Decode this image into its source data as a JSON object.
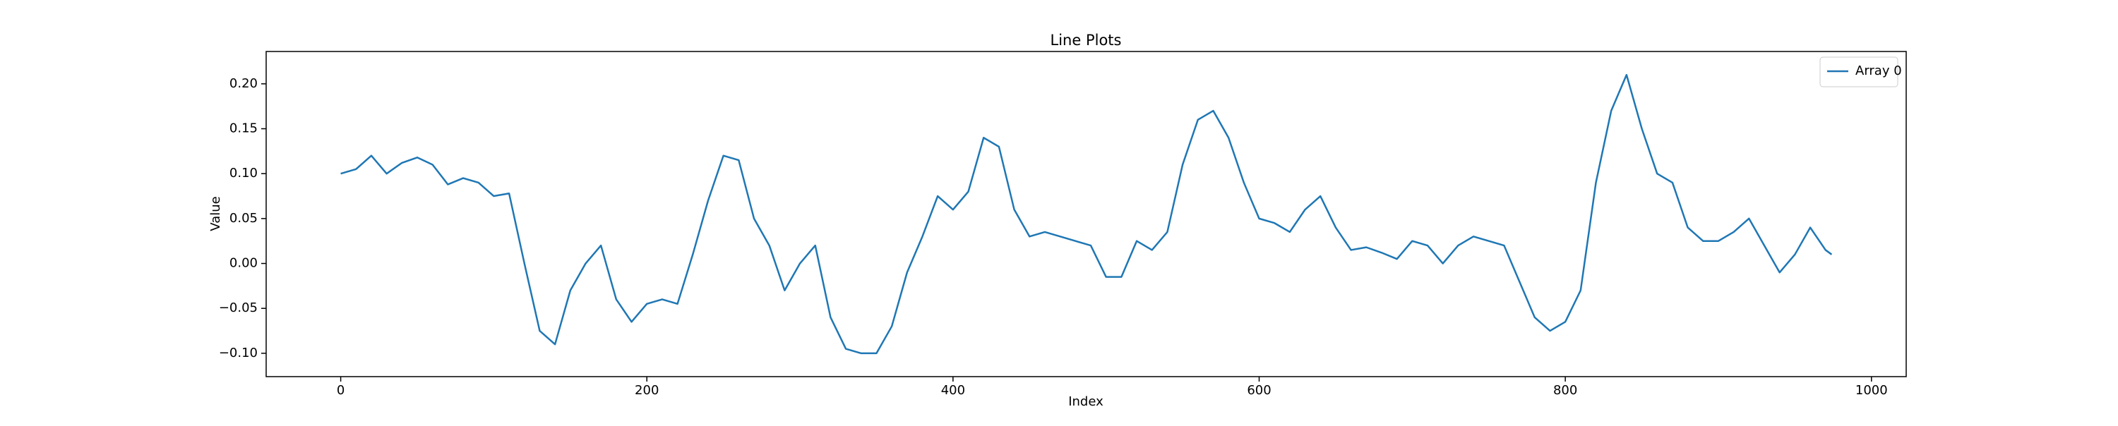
{
  "chart_data": {
    "type": "line",
    "title": "Line Plots",
    "x_label": "Index",
    "y_label": "Value",
    "x": [
      0,
      10,
      20,
      30,
      40,
      50,
      60,
      70,
      80,
      90,
      100,
      110,
      120,
      130,
      140,
      150,
      160,
      170,
      180,
      190,
      200,
      210,
      220,
      230,
      240,
      250,
      260,
      270,
      280,
      290,
      300,
      310,
      320,
      330,
      340,
      350,
      360,
      370,
      380,
      390,
      400,
      410,
      420,
      430,
      440,
      450,
      460,
      470,
      480,
      490,
      500,
      510,
      520,
      530,
      540,
      550,
      560,
      570,
      580,
      590,
      600,
      610,
      620,
      630,
      640,
      650,
      660,
      670,
      680,
      690,
      700,
      710,
      720,
      730,
      740,
      750,
      760,
      770,
      780,
      790,
      800,
      810,
      820,
      830,
      840,
      850,
      860,
      870,
      880,
      890,
      900,
      910,
      920,
      930,
      940,
      950,
      960,
      970,
      974
    ],
    "series": [
      {
        "name": "Array 0",
        "color": "#1f77b4",
        "values": [
          0.1,
          0.105,
          0.12,
          0.1,
          0.112,
          0.118,
          0.11,
          0.088,
          0.095,
          0.09,
          0.075,
          0.078,
          0.0,
          -0.075,
          -0.09,
          -0.03,
          0.0,
          0.02,
          -0.04,
          -0.065,
          -0.045,
          -0.04,
          -0.045,
          0.01,
          0.07,
          0.12,
          0.115,
          0.05,
          0.02,
          -0.03,
          0.0,
          0.02,
          -0.06,
          -0.095,
          -0.1,
          -0.1,
          -0.07,
          -0.01,
          0.03,
          0.075,
          0.06,
          0.08,
          0.14,
          0.13,
          0.06,
          0.03,
          0.035,
          0.03,
          0.025,
          0.02,
          -0.015,
          -0.015,
          0.025,
          0.015,
          0.035,
          0.11,
          0.16,
          0.17,
          0.14,
          0.09,
          0.05,
          0.045,
          0.035,
          0.06,
          0.075,
          0.04,
          0.015,
          0.018,
          0.012,
          0.005,
          0.025,
          0.02,
          0.0,
          0.02,
          0.03,
          0.025,
          0.02,
          -0.02,
          -0.06,
          -0.075,
          -0.065,
          -0.03,
          0.09,
          0.17,
          0.21,
          0.15,
          0.1,
          0.09,
          0.04,
          0.025,
          0.025,
          0.035,
          0.05,
          0.02,
          -0.01,
          0.01,
          0.04,
          0.015,
          0.01
        ]
      }
    ],
    "xlim": [
      -48.7,
      1022.7
    ],
    "ylim": [
      -0.126,
      0.236
    ],
    "xticks": [
      0,
      200,
      400,
      600,
      800,
      1000
    ],
    "yticks": [
      {
        "value": -0.1,
        "label": "−0.10"
      },
      {
        "value": -0.05,
        "label": "−0.05"
      },
      {
        "value": 0.0,
        "label": "0.00"
      },
      {
        "value": 0.05,
        "label": "0.05"
      },
      {
        "value": 0.1,
        "label": "0.10"
      },
      {
        "value": 0.15,
        "label": "0.15"
      },
      {
        "value": 0.2,
        "label": "0.20"
      }
    ],
    "grid": false,
    "legend": "upper right"
  }
}
